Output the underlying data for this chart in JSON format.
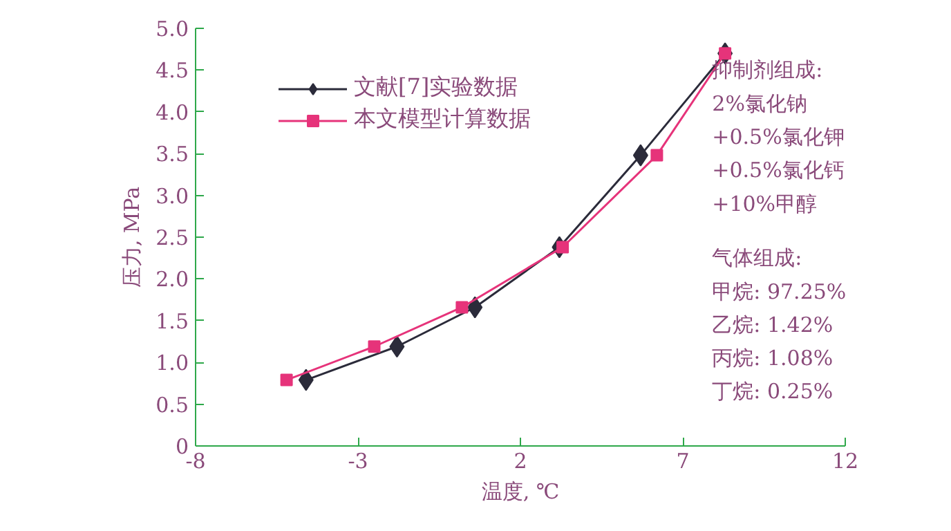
{
  "chart_data": {
    "type": "line",
    "xlabel": "温度, ℃",
    "ylabel": "压力, MPa",
    "xlim": [
      -8,
      12
    ],
    "xticks": [
      -8,
      -3,
      2,
      7,
      12
    ],
    "ylim": [
      0,
      5.0
    ],
    "yticks": [
      {
        "value": 0,
        "label": "0"
      },
      {
        "value": 0.5,
        "label": "0.5"
      },
      {
        "value": 1.0,
        "label": "1.0"
      },
      {
        "value": 1.5,
        "label": "1.5"
      },
      {
        "value": 2.0,
        "label": "2.0"
      },
      {
        "value": 2.5,
        "label": "2.5"
      },
      {
        "value": 3.0,
        "label": "3.0"
      },
      {
        "value": 3.5,
        "label": "3.5"
      },
      {
        "value": 4.0,
        "label": "4.0"
      },
      {
        "value": 4.5,
        "label": "4.5"
      },
      {
        "value": 5.0,
        "label": "5.0"
      }
    ],
    "grid": false,
    "legend": "top left",
    "series": [
      {
        "name": "文献[7]实验数据",
        "color": "#2b2b3a",
        "marker": "diamond",
        "x": [
          -4.6,
          -1.8,
          0.6,
          3.2,
          5.7,
          8.3
        ],
        "values": [
          0.79,
          1.19,
          1.66,
          2.38,
          3.48,
          4.7
        ]
      },
      {
        "name": "本文模型计算数据",
        "color": "#e6337a",
        "marker": "square",
        "x": [
          -5.2,
          -2.5,
          0.2,
          3.3,
          6.2,
          8.3
        ],
        "values": [
          0.79,
          1.19,
          1.66,
          2.38,
          3.48,
          4.7
        ]
      }
    ],
    "annotations": [
      "抑制剂组成:",
      "2%氯化钠",
      "+0.5%氯化钾",
      "+0.5%氯化钙",
      "+10%甲醇",
      "气体组成:",
      "甲烷: 97.25%",
      "乙烷: 1.42%",
      "丙烷: 1.08%",
      "丁烷: 0.25%"
    ]
  }
}
